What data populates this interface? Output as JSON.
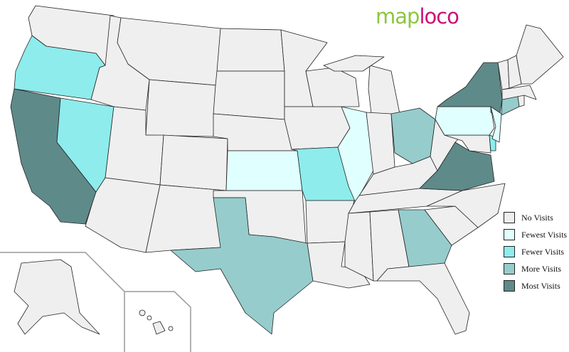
{
  "logo": {
    "part1": "map",
    "part2": "loco",
    "colors": {
      "part1": "#8cc63f",
      "part2": "#cc1177"
    }
  },
  "legend": [
    {
      "label": "No Visits",
      "key": "none",
      "color": "#efefef"
    },
    {
      "label": "Fewest Visits",
      "key": "fewest",
      "color": "#e0ffff"
    },
    {
      "label": "Fewer Visits",
      "key": "fewer",
      "color": "#8eecec"
    },
    {
      "label": "More Visits",
      "key": "more",
      "color": "#96cccc"
    },
    {
      "label": "Most Visits",
      "key": "most",
      "color": "#5f8a8a"
    }
  ],
  "states": {
    "WA": "none",
    "OR": "fewer",
    "CA": "most",
    "NV": "fewer",
    "ID": "none",
    "MT": "none",
    "WY": "none",
    "UT": "none",
    "AZ": "none",
    "CO": "none",
    "NM": "none",
    "ND": "none",
    "SD": "none",
    "NE": "none",
    "KS": "fewest",
    "OK": "none",
    "TX": "more",
    "MN": "none",
    "IA": "none",
    "MO": "fewer",
    "AR": "none",
    "LA": "none",
    "WI": "none",
    "IL": "fewest",
    "MI": "none",
    "IN": "none",
    "OH": "more",
    "KY": "none",
    "TN": "none",
    "MS": "none",
    "AL": "none",
    "GA": "more",
    "FL": "none",
    "SC": "none",
    "NC": "none",
    "VA": "most",
    "WV": "none",
    "MD": "none",
    "DE": "fewer",
    "PA": "fewest",
    "NY": "most",
    "NJ": "fewest",
    "CT": "more",
    "RI": "none",
    "MA": "none",
    "VT": "none",
    "NH": "none",
    "ME": "none",
    "AK": "none",
    "HI": "none"
  }
}
